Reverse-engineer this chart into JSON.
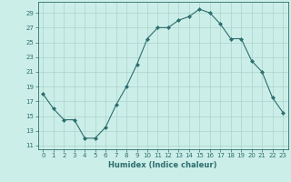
{
  "x": [
    0,
    1,
    2,
    3,
    4,
    5,
    6,
    7,
    8,
    9,
    10,
    11,
    12,
    13,
    14,
    15,
    16,
    17,
    18,
    19,
    20,
    21,
    22,
    23
  ],
  "y": [
    18,
    16,
    14.5,
    14.5,
    12,
    12,
    13.5,
    16.5,
    19,
    22,
    25.5,
    27,
    27,
    28,
    28.5,
    29.5,
    29,
    27.5,
    25.5,
    25.5,
    22.5,
    21,
    17.5,
    15.5
  ],
  "line_color": "#2d6e6e",
  "marker_color": "#2d6e6e",
  "bg_color": "#cceee8",
  "grid_color": "#aad4cc",
  "xlabel": "Humidex (Indice chaleur)",
  "yticks": [
    11,
    13,
    15,
    17,
    19,
    21,
    23,
    25,
    27,
    29
  ],
  "xticks": [
    0,
    1,
    2,
    3,
    4,
    5,
    6,
    7,
    8,
    9,
    10,
    11,
    12,
    13,
    14,
    15,
    16,
    17,
    18,
    19,
    20,
    21,
    22,
    23
  ],
  "ylim": [
    10.5,
    30.5
  ],
  "xlim": [
    -0.5,
    23.5
  ],
  "tick_color": "#2d6e6e",
  "label_color": "#2d6e6e",
  "tick_fontsize": 5.0,
  "xlabel_fontsize": 6.0
}
